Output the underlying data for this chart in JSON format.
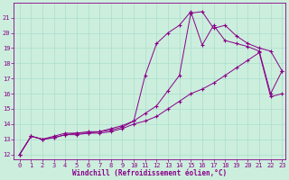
{
  "xlabel": "Windchill (Refroidissement éolien,°C)",
  "bg_color": "#cceedd",
  "line_color": "#880088",
  "grid_color": "#aaddcc",
  "ylim": [
    11.7,
    22.0
  ],
  "xlim": [
    -0.5,
    23.3
  ],
  "yticks": [
    12,
    13,
    14,
    15,
    16,
    17,
    18,
    19,
    20,
    21
  ],
  "xticks": [
    0,
    1,
    2,
    3,
    4,
    5,
    6,
    7,
    8,
    9,
    10,
    11,
    12,
    13,
    14,
    15,
    16,
    17,
    18,
    19,
    20,
    21,
    22,
    23
  ],
  "line1_x": [
    0,
    1,
    2,
    3,
    4,
    5,
    6,
    7,
    8,
    9,
    10,
    11,
    12,
    13,
    14,
    15,
    16,
    17,
    18,
    19,
    20,
    21,
    22,
    23
  ],
  "line1_y": [
    12.0,
    13.2,
    13.0,
    13.1,
    13.3,
    13.3,
    13.4,
    13.4,
    13.5,
    13.7,
    14.0,
    14.2,
    14.5,
    15.0,
    15.5,
    16.0,
    16.3,
    16.7,
    17.2,
    17.7,
    18.2,
    18.7,
    15.8,
    16.0
  ],
  "line2_x": [
    0,
    1,
    2,
    3,
    4,
    5,
    6,
    7,
    8,
    9,
    10,
    11,
    12,
    13,
    14,
    15,
    16,
    17,
    18,
    19,
    20,
    21,
    22,
    23
  ],
  "line2_y": [
    12.0,
    13.2,
    13.0,
    13.1,
    13.3,
    13.4,
    13.4,
    13.5,
    13.6,
    13.8,
    14.2,
    17.2,
    19.3,
    20.0,
    20.5,
    21.4,
    19.2,
    20.5,
    19.5,
    19.3,
    19.1,
    18.8,
    16.0,
    17.5
  ],
  "line3_x": [
    0,
    1,
    2,
    3,
    4,
    5,
    6,
    7,
    8,
    9,
    10,
    11,
    12,
    13,
    14,
    15,
    16,
    17,
    18,
    19,
    20,
    21,
    22,
    23
  ],
  "line3_y": [
    12.0,
    13.2,
    13.0,
    13.2,
    13.4,
    13.4,
    13.5,
    13.5,
    13.7,
    13.9,
    14.2,
    14.7,
    15.2,
    16.2,
    17.2,
    21.3,
    21.4,
    20.3,
    20.5,
    19.8,
    19.3,
    19.0,
    18.8,
    17.5
  ]
}
